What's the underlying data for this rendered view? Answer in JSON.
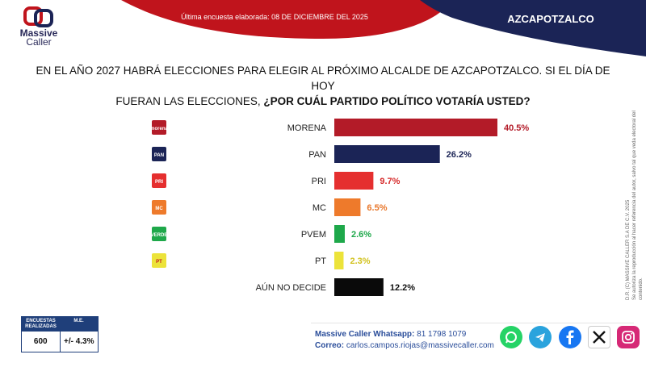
{
  "header": {
    "brand_line1": "Massive",
    "brand_line2": "Caller",
    "survey_date": "Última encuesta elaborada: 08 DE DICIEMBRE DEL 2025",
    "city": "AZCAPOTZALCO"
  },
  "question": {
    "line1": "EN EL AÑO 2027 HABRÁ ELECCIONES PARA ELEGIR AL PRÓXIMO ALCALDE DE AZCAPOTZALCO. SI EL DÍA DE HOY",
    "line2_plain": "FUERAN LAS ELECCIONES,",
    "line2_bold": "¿POR CUÁL PARTIDO POLÍTICO VOTARÍA USTED?"
  },
  "chart_data": {
    "type": "bar",
    "orientation": "horizontal",
    "categories": [
      "MORENA",
      "PAN",
      "PRI",
      "MC",
      "PVEM",
      "PT",
      "AÚN NO DECIDE"
    ],
    "values": [
      40.5,
      26.2,
      9.7,
      6.5,
      2.6,
      2.3,
      12.2
    ],
    "value_labels": [
      "40.5%",
      "26.2%",
      "9.7%",
      "6.5%",
      "2.6%",
      "2.3%",
      "12.2%"
    ],
    "colors": [
      "#b31b28",
      "#1b2456",
      "#e52f2f",
      "#ee7a2b",
      "#1ea84a",
      "#ece33a",
      "#0a0a0a"
    ],
    "label_colors": [
      "#b31b28",
      "#1b2456",
      "#d62a2a",
      "#e8762a",
      "#1ea84a",
      "#d2c21f",
      "#111111"
    ],
    "party_logos": [
      "morena",
      "PAN",
      "PRI",
      "MC",
      "VERDE",
      "PT",
      ""
    ],
    "xlim": [
      0,
      40.5
    ]
  },
  "stats": {
    "col1_header": "ENCUESTAS REALIZADAS",
    "col2_header": "M.E.",
    "col1_value": "600",
    "col2_value": "+/- 4.3%"
  },
  "contact": {
    "whatsapp_label": "Massive Caller Whatsapp:",
    "whatsapp_number": "81 1798 1079",
    "email_label": "Correo:",
    "email": "carlos.campos.riojas@massivecaller.com"
  },
  "side_note": {
    "line1": "D.R. (C) MASSIVE CALLER S.A DE C.V. 2025",
    "line2": "Se autoriza la reproducción al hacer referencia del autor, salvo tal que veda electoral del contenido."
  },
  "social_icons": [
    "whatsapp-icon",
    "telegram-icon",
    "facebook-icon",
    "x-icon",
    "instagram-icon"
  ],
  "social_colors": [
    "#25d366",
    "#2aa3dd",
    "#1877f2",
    "#111111",
    "#d62976"
  ]
}
